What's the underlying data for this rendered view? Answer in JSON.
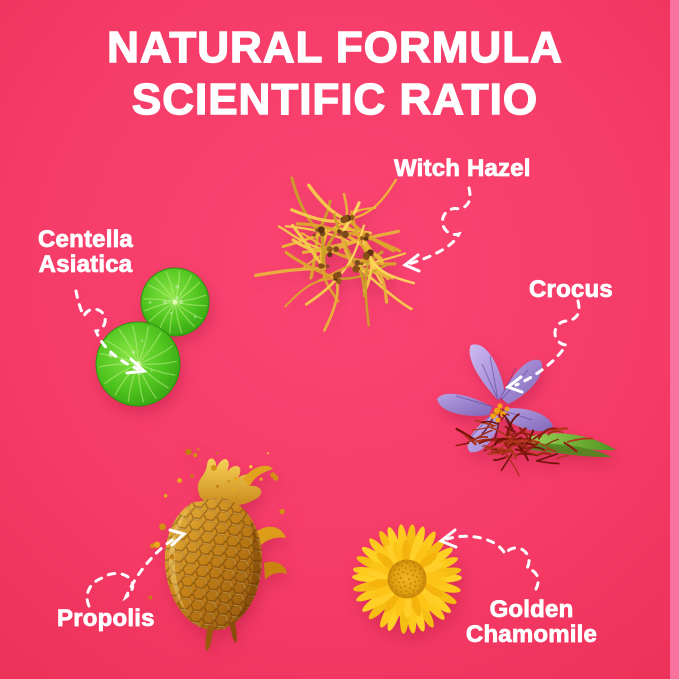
{
  "title": {
    "line1": "NATURAL FORMULA",
    "line2": "SCIENTIFIC RATIO"
  },
  "ingredients": [
    {
      "label": "Witch Hazel",
      "illustration": "witch-hazel-flower"
    },
    {
      "label": "Centella Asiatica",
      "illustration": "centella-asiatica-leaves"
    },
    {
      "label": "Crocus",
      "illustration": "crocus-flower-with-saffron"
    },
    {
      "label": "Propolis",
      "illustration": "honeycomb-with-honey-splash"
    },
    {
      "label": "Golden Chamomile",
      "illustration": "golden-chamomile-flower"
    }
  ],
  "colors": {
    "background": "#f63c68",
    "background_edge": "#ec3159",
    "right_edge_strip": "#f9719f",
    "text": "#ffffff",
    "arrow": "#ffffff",
    "witch_hazel_yellow": "#edbb37",
    "centella_green": "#4fc41e",
    "crocus_purple": "#9a7fd0",
    "saffron_red": "#8e1d10",
    "honey_gold": "#c58318",
    "chamomile_yellow": "#ffd125"
  }
}
